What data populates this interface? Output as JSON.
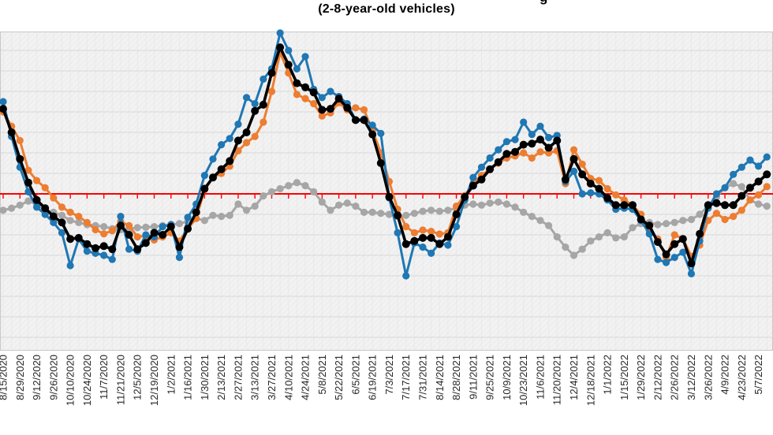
{
  "subtitle": "(2-8-year-old vehicles)",
  "title_visible_fragment": "g",
  "chart_data": {
    "type": "line",
    "title": "(main title cropped out of view; only a letter descender visible)",
    "x_tick_labels": [
      "8/15/2020",
      "8/29/2020",
      "9/12/2020",
      "9/26/2020",
      "10/10/2020",
      "10/24/2020",
      "11/7/2020",
      "11/21/2020",
      "12/5/2020",
      "12/19/2020",
      "1/2/2021",
      "1/16/2021",
      "1/30/2021",
      "2/13/2021",
      "2/27/2021",
      "3/13/2021",
      "3/27/2021",
      "4/10/2021",
      "4/24/2021",
      "5/8/2021",
      "5/22/2021",
      "6/5/2021",
      "6/19/2021",
      "7/3/2021",
      "7/17/2021",
      "7/31/2021",
      "8/14/2021",
      "8/28/2021",
      "9/11/2021",
      "9/25/2021",
      "10/9/2021",
      "10/23/2021",
      "11/6/2021",
      "11/20/2021",
      "12/4/2021",
      "12/18/2021",
      "1/1/2022",
      "1/15/2022",
      "1/29/2022",
      "2/12/2022",
      "2/26/2022",
      "3/12/2022",
      "3/26/2022",
      "4/9/2022",
      "4/23/2022",
      "5/7/2022"
    ],
    "x_tick_every": 2,
    "x": [
      "8/15/2020",
      "8/22/2020",
      "8/29/2020",
      "9/5/2020",
      "9/12/2020",
      "9/19/2020",
      "9/26/2020",
      "10/3/2020",
      "10/10/2020",
      "10/17/2020",
      "10/24/2020",
      "10/31/2020",
      "11/7/2020",
      "11/14/2020",
      "11/21/2020",
      "11/28/2020",
      "12/5/2020",
      "12/12/2020",
      "12/19/2020",
      "12/26/2020",
      "1/2/2021",
      "1/9/2021",
      "1/16/2021",
      "1/23/2021",
      "1/30/2021",
      "2/6/2021",
      "2/13/2021",
      "2/20/2021",
      "2/27/2021",
      "3/6/2021",
      "3/13/2021",
      "3/20/2021",
      "3/27/2021",
      "4/3/2021",
      "4/10/2021",
      "4/17/2021",
      "4/24/2021",
      "5/1/2021",
      "5/8/2021",
      "5/15/2021",
      "5/22/2021",
      "5/29/2021",
      "6/5/2021",
      "6/12/2021",
      "6/19/2021",
      "6/26/2021",
      "7/3/2021",
      "7/10/2021",
      "7/17/2021",
      "7/24/2021",
      "7/31/2021",
      "8/7/2021",
      "8/14/2021",
      "8/21/2021",
      "8/28/2021",
      "9/4/2021",
      "9/11/2021",
      "9/18/2021",
      "9/25/2021",
      "10/2/2021",
      "10/9/2021",
      "10/16/2021",
      "10/23/2021",
      "10/30/2021",
      "11/6/2021",
      "11/13/2021",
      "11/20/2021",
      "11/27/2021",
      "12/4/2021",
      "12/11/2021",
      "12/18/2021",
      "12/25/2021",
      "1/1/2022",
      "1/8/2022",
      "1/15/2022",
      "1/22/2022",
      "1/29/2022",
      "2/5/2022",
      "2/12/2022",
      "2/19/2022",
      "2/26/2022",
      "3/5/2022",
      "3/12/2022",
      "3/19/2022",
      "3/26/2022",
      "4/2/2022",
      "4/9/2022",
      "4/16/2022",
      "4/23/2022",
      "4/30/2022",
      "5/7/2022",
      "5/14/2022"
    ],
    "y_axis": {
      "labels_visible": false,
      "units": "gridline units relative to red zero reference line",
      "gridline_step": 1,
      "range_units": [
        -7.9,
        7.9
      ]
    },
    "zero_reference_line": {
      "value": 0,
      "color": "#ff0000",
      "tick_marks": "short downward ticks at each biweekly x tick"
    },
    "grid": {
      "horizontal": true,
      "vertical_weekly": true,
      "plot_fill": "#f2f2f2",
      "hatch": true
    },
    "legend_visible": false,
    "series": [
      {
        "name": "gray-line",
        "color": "#a6a6a6",
        "values": [
          -0.8,
          -0.7,
          -0.55,
          -0.35,
          -0.5,
          -0.8,
          -0.9,
          -1.05,
          -1.3,
          -1.4,
          -1.5,
          -1.55,
          -1.6,
          -1.7,
          -1.75,
          -1.7,
          -1.65,
          -1.63,
          -1.6,
          -1.55,
          -1.5,
          -1.45,
          -1.35,
          -1.2,
          -1.3,
          -1.05,
          -1.1,
          -1.05,
          -0.5,
          -0.8,
          -0.6,
          -0.1,
          0.1,
          0.25,
          0.4,
          0.55,
          0.4,
          0.1,
          -0.4,
          -0.8,
          -0.55,
          -0.45,
          -0.6,
          -0.9,
          -0.9,
          -0.95,
          -1.0,
          -1.1,
          -1.05,
          -0.95,
          -0.85,
          -0.8,
          -0.85,
          -0.8,
          -0.7,
          -0.55,
          -0.5,
          -0.55,
          -0.45,
          -0.4,
          -0.5,
          -0.65,
          -0.9,
          -1.1,
          -1.3,
          -1.55,
          -2.1,
          -2.6,
          -3.0,
          -2.7,
          -2.3,
          -2.1,
          -1.9,
          -2.15,
          -2.1,
          -1.65,
          -1.45,
          -1.4,
          -1.5,
          -1.45,
          -1.4,
          -1.3,
          -1.25,
          -1.0,
          -0.6,
          -0.15,
          0.3,
          0.5,
          0.35,
          -0.3,
          -0.5,
          -0.6
        ]
      },
      {
        "name": "orange-line",
        "color": "#ed7d31",
        "values": [
          4.0,
          3.3,
          2.6,
          1.15,
          0.65,
          0.3,
          -0.2,
          -0.65,
          -0.9,
          -1.1,
          -1.4,
          -1.75,
          -1.95,
          -1.8,
          -1.35,
          -1.55,
          -2.1,
          -2.05,
          -2.25,
          -2.1,
          -1.9,
          -2.3,
          -1.7,
          -1.2,
          0.2,
          0.8,
          1.0,
          1.35,
          2.1,
          2.5,
          2.8,
          3.5,
          5.0,
          6.9,
          5.9,
          4.85,
          4.65,
          4.4,
          3.8,
          3.95,
          4.45,
          4.1,
          4.2,
          4.1,
          3.1,
          2.0,
          0.6,
          -0.75,
          -1.6,
          -1.9,
          -1.77,
          -1.83,
          -1.96,
          -1.9,
          -0.6,
          -0.08,
          0.5,
          0.9,
          1.2,
          1.5,
          1.75,
          1.85,
          2.0,
          1.75,
          2.05,
          2.0,
          2.1,
          0.5,
          2.15,
          1.45,
          0.75,
          0.65,
          0.25,
          -0.05,
          -0.3,
          -0.55,
          -1.0,
          -1.8,
          -2.2,
          -3.1,
          -2.0,
          -2.2,
          -3.05,
          -2.5,
          -1.3,
          -0.95,
          -1.25,
          -1.1,
          -0.8,
          -0.3,
          -0.05,
          0.35
        ]
      },
      {
        "name": "blue-line",
        "color": "#1f77b4",
        "values": [
          4.5,
          2.8,
          1.3,
          0.1,
          -0.65,
          -1.0,
          -1.4,
          -1.9,
          -3.5,
          -2.2,
          -2.8,
          -2.9,
          -3.0,
          -3.2,
          -1.1,
          -2.7,
          -2.8,
          -2.0,
          -2.1,
          -1.6,
          -1.5,
          -3.1,
          -1.15,
          -0.5,
          0.9,
          1.7,
          2.4,
          2.7,
          3.4,
          4.7,
          4.4,
          5.6,
          6.1,
          7.85,
          7.0,
          6.1,
          6.7,
          5.1,
          4.7,
          5.0,
          4.75,
          4.4,
          3.6,
          3.65,
          3.35,
          2.95,
          -0.2,
          -1.9,
          -4.0,
          -2.4,
          -2.6,
          -2.9,
          -2.4,
          -2.5,
          -1.6,
          -0.3,
          0.8,
          1.3,
          1.75,
          2.15,
          2.55,
          2.65,
          3.5,
          2.9,
          3.3,
          2.75,
          2.85,
          0.6,
          1.1,
          0.0,
          0.05,
          0.0,
          -0.3,
          -0.75,
          -0.7,
          -0.75,
          -1.3,
          -1.95,
          -3.2,
          -3.35,
          -3.1,
          -2.85,
          -3.9,
          -2.3,
          -0.7,
          0.0,
          0.3,
          0.95,
          1.3,
          1.65,
          1.35,
          1.8
        ]
      },
      {
        "name": "black-line",
        "color": "#000000",
        "values": [
          4.15,
          3.0,
          1.7,
          0.55,
          -0.3,
          -0.7,
          -1.1,
          -1.4,
          -2.2,
          -2.15,
          -2.45,
          -2.65,
          -2.55,
          -2.7,
          -1.55,
          -2.0,
          -2.7,
          -2.4,
          -1.9,
          -2.0,
          -1.6,
          -2.6,
          -1.7,
          -0.9,
          0.25,
          0.8,
          1.2,
          1.6,
          2.6,
          3.0,
          4.05,
          4.35,
          5.9,
          7.15,
          6.3,
          5.4,
          5.2,
          4.95,
          4.1,
          4.15,
          4.65,
          4.2,
          3.6,
          3.6,
          2.9,
          1.5,
          -0.15,
          -1.05,
          -2.45,
          -2.3,
          -2.15,
          -2.15,
          -2.45,
          -2.1,
          -1.0,
          -0.15,
          0.4,
          0.7,
          1.2,
          1.55,
          1.95,
          2.05,
          2.4,
          2.45,
          2.65,
          2.25,
          2.6,
          0.7,
          1.7,
          0.95,
          0.5,
          0.25,
          -0.2,
          -0.55,
          -0.55,
          -0.55,
          -1.25,
          -1.55,
          -2.35,
          -2.95,
          -2.45,
          -2.2,
          -3.4,
          -1.95,
          -0.55,
          -0.45,
          -0.55,
          -0.55,
          -0.1,
          0.3,
          0.6,
          0.95
        ]
      }
    ]
  }
}
